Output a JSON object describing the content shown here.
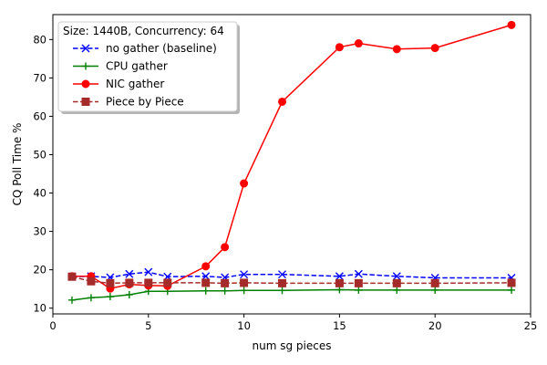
{
  "chart_data": {
    "type": "line",
    "xlabel": "num sg pieces",
    "ylabel": "CQ Poll Time %",
    "xlim": [
      0,
      25
    ],
    "ylim": [
      8.5,
      86.5
    ],
    "xticks": [
      0,
      5,
      10,
      15,
      20,
      25
    ],
    "yticks": [
      10,
      20,
      30,
      40,
      50,
      60,
      70,
      80
    ],
    "grid": false,
    "legend": {
      "title": "Size: 1440B, Concurrency: 64",
      "placement": "top-left"
    },
    "x": [
      1,
      2,
      3,
      4,
      5,
      6,
      8,
      9,
      10,
      12,
      15,
      16,
      18,
      20,
      24
    ],
    "series": [
      {
        "name": "no gather (baseline)",
        "color": "#0000ff",
        "marker": "x",
        "dash": "dashed",
        "values": [
          18.2,
          18.3,
          18.0,
          18.9,
          19.4,
          18.2,
          18.3,
          18.0,
          18.8,
          18.8,
          18.3,
          18.9,
          18.3,
          17.9,
          17.9
        ]
      },
      {
        "name": "CPU gather",
        "color": "#008000",
        "marker": "plus",
        "dash": "solid",
        "values": [
          12.1,
          12.7,
          13.0,
          13.5,
          14.4,
          14.4,
          14.5,
          14.5,
          14.6,
          14.6,
          14.8,
          14.7,
          14.7,
          14.7,
          14.7
        ]
      },
      {
        "name": "NIC gather",
        "color": "#ff0000",
        "marker": "circle",
        "dash": "solid",
        "values": [
          18.3,
          18.3,
          15.1,
          16.2,
          15.9,
          15.8,
          20.9,
          25.9,
          42.5,
          63.8,
          78.0,
          79.0,
          77.5,
          77.8,
          83.8
        ]
      },
      {
        "name": "Piece by Piece",
        "color": "#a52a2a",
        "marker": "square",
        "dash": "dashed",
        "values": [
          18.2,
          17.0,
          16.5,
          16.6,
          16.6,
          16.6,
          16.6,
          16.5,
          16.6,
          16.5,
          16.5,
          16.5,
          16.5,
          16.5,
          16.6
        ]
      }
    ]
  }
}
